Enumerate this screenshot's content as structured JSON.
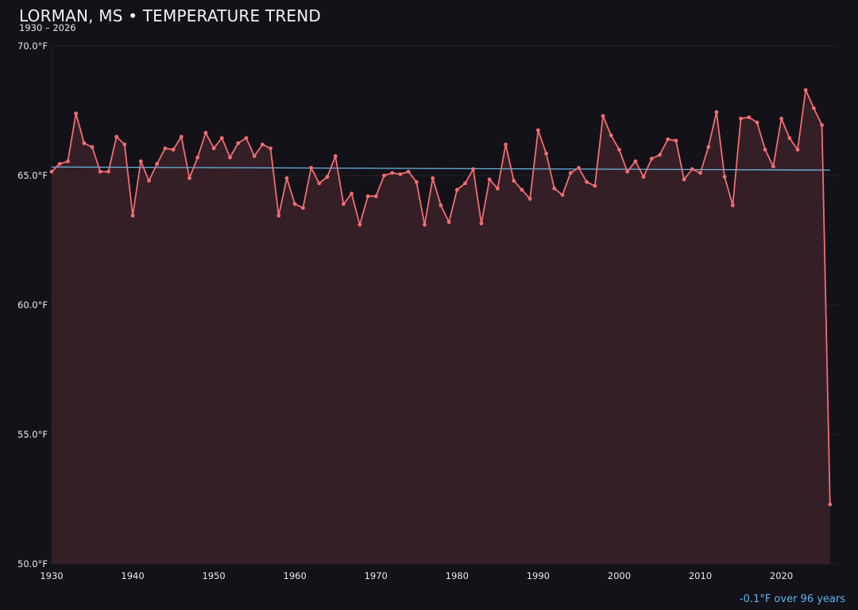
{
  "header": {
    "title": "LORMAN, MS • TEMPERATURE TREND",
    "subtitle": "1930 – 2026"
  },
  "footer": {
    "trend_text": "-0.1°F over 96 years"
  },
  "colors": {
    "background": "#131218",
    "line": "#f26d72",
    "area_fill": "#351f26",
    "trend": "#6ab6e6",
    "grid": "#23222a"
  },
  "chart_data": {
    "type": "line",
    "title": "LORMAN, MS • TEMPERATURE TREND",
    "subtitle": "1930 – 2026",
    "xlabel": "",
    "ylabel": "",
    "xlim": [
      1930,
      2027
    ],
    "ylim": [
      50,
      70
    ],
    "x_ticks": [
      1930,
      1940,
      1950,
      1960,
      1970,
      1980,
      1990,
      2000,
      2010,
      2020
    ],
    "x_tick_labels": [
      "1930",
      "1940",
      "1950",
      "1960",
      "1970",
      "1980",
      "1990",
      "2000",
      "2010",
      "2020"
    ],
    "y_ticks": [
      50,
      55,
      60,
      65,
      70
    ],
    "y_tick_labels": [
      "50.0°F",
      "55.0°F",
      "60.0°F",
      "65.0°F",
      "70.0°F"
    ],
    "grid": true,
    "series": [
      {
        "type": "line",
        "area_fill": true,
        "x": [
          1930,
          1931,
          1932,
          1933,
          1934,
          1935,
          1936,
          1937,
          1938,
          1939,
          1940,
          1941,
          1942,
          1943,
          1944,
          1945,
          1946,
          1947,
          1948,
          1949,
          1950,
          1951,
          1952,
          1953,
          1954,
          1955,
          1956,
          1957,
          1958,
          1959,
          1960,
          1961,
          1962,
          1963,
          1964,
          1965,
          1966,
          1967,
          1968,
          1969,
          1970,
          1971,
          1972,
          1973,
          1974,
          1975,
          1976,
          1977,
          1978,
          1979,
          1980,
          1981,
          1982,
          1983,
          1984,
          1985,
          1986,
          1987,
          1988,
          1989,
          1990,
          1991,
          1992,
          1993,
          1994,
          1995,
          1996,
          1997,
          1998,
          1999,
          2000,
          2001,
          2002,
          2003,
          2004,
          2005,
          2006,
          2007,
          2008,
          2009,
          2010,
          2011,
          2012,
          2013,
          2014,
          2015,
          2016,
          2017,
          2018,
          2019,
          2020,
          2021,
          2022,
          2023,
          2024,
          2025,
          2026
        ],
        "values": [
          65.15,
          65.45,
          65.55,
          67.4,
          66.25,
          66.1,
          65.15,
          65.15,
          66.5,
          66.2,
          63.45,
          65.55,
          64.8,
          65.45,
          66.05,
          66.0,
          66.5,
          64.9,
          65.7,
          66.65,
          66.05,
          66.45,
          65.7,
          66.25,
          66.45,
          65.75,
          66.2,
          66.05,
          63.45,
          64.9,
          63.9,
          63.75,
          65.3,
          64.7,
          64.95,
          65.75,
          63.9,
          64.3,
          63.1,
          64.2,
          64.2,
          65.0,
          65.1,
          65.05,
          65.15,
          64.75,
          63.1,
          64.9,
          63.85,
          63.2,
          64.45,
          64.7,
          65.25,
          63.15,
          64.85,
          64.5,
          66.2,
          64.8,
          64.45,
          64.1,
          66.75,
          65.85,
          64.5,
          64.25,
          65.1,
          65.3,
          64.75,
          64.6,
          67.3,
          66.55,
          66.0,
          65.15,
          65.55,
          64.95,
          65.65,
          65.8,
          66.4,
          66.35,
          64.85,
          65.25,
          65.1,
          66.1,
          67.45,
          64.95,
          63.85,
          67.2,
          67.25,
          67.05,
          66.0,
          65.35,
          67.2,
          66.45,
          66.0,
          68.3,
          67.6,
          66.95,
          52.3
        ]
      },
      {
        "type": "trend",
        "x": [
          1930,
          2026
        ],
        "values": [
          65.33,
          65.21
        ]
      }
    ],
    "annotations": [
      "-0.1°F over 96 years"
    ]
  }
}
